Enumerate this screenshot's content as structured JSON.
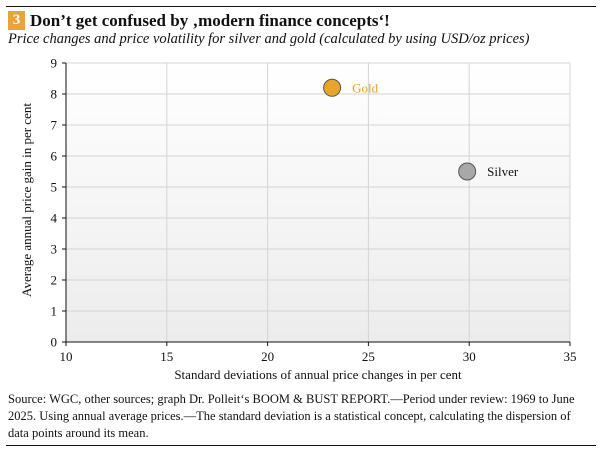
{
  "header": {
    "number": "3",
    "title": "Don’t get confused by ‚modern finance concepts‘!",
    "subtitle": "Price changes and price volatility for silver and gold (calculated by using USD/oz prices)"
  },
  "footer": {
    "source": "Source: WGC, other sources; graph Dr. Polleit‘s BOOM & BUST REPORT.—Period under review: 1969 to June 2025. Using annual average prices.—The standard deviation is a statistical concept, calculating the dispersion of data points around its mean."
  },
  "colors": {
    "accent": "#e9a33a",
    "gold": "#e9a52a",
    "silver": "#a8a8a8",
    "plot_bg": "#f1f1f1"
  },
  "chart_data": {
    "type": "scatter",
    "title": "Don’t get confused by ‚modern finance concepts‘!",
    "subtitle": "Price changes and price volatility for silver and gold (calculated by using USD/oz prices)",
    "xlabel": "Standard deviations of annual price changes in per cent",
    "ylabel": "Average annual price gain in per cent",
    "xlim": [
      10,
      35
    ],
    "ylim": [
      0,
      9
    ],
    "xticks": [
      "10",
      "15",
      "20",
      "25",
      "30",
      "35"
    ],
    "yticks": [
      "0",
      "1",
      "2",
      "3",
      "4",
      "5",
      "6",
      "7",
      "8",
      "9"
    ],
    "grid": true,
    "series": [
      {
        "name": "Gold",
        "x": 23.2,
        "y": 8.2,
        "color": "#e9a52a"
      },
      {
        "name": "Silver",
        "x": 29.9,
        "y": 5.5,
        "color": "#a8a8a8"
      }
    ]
  }
}
